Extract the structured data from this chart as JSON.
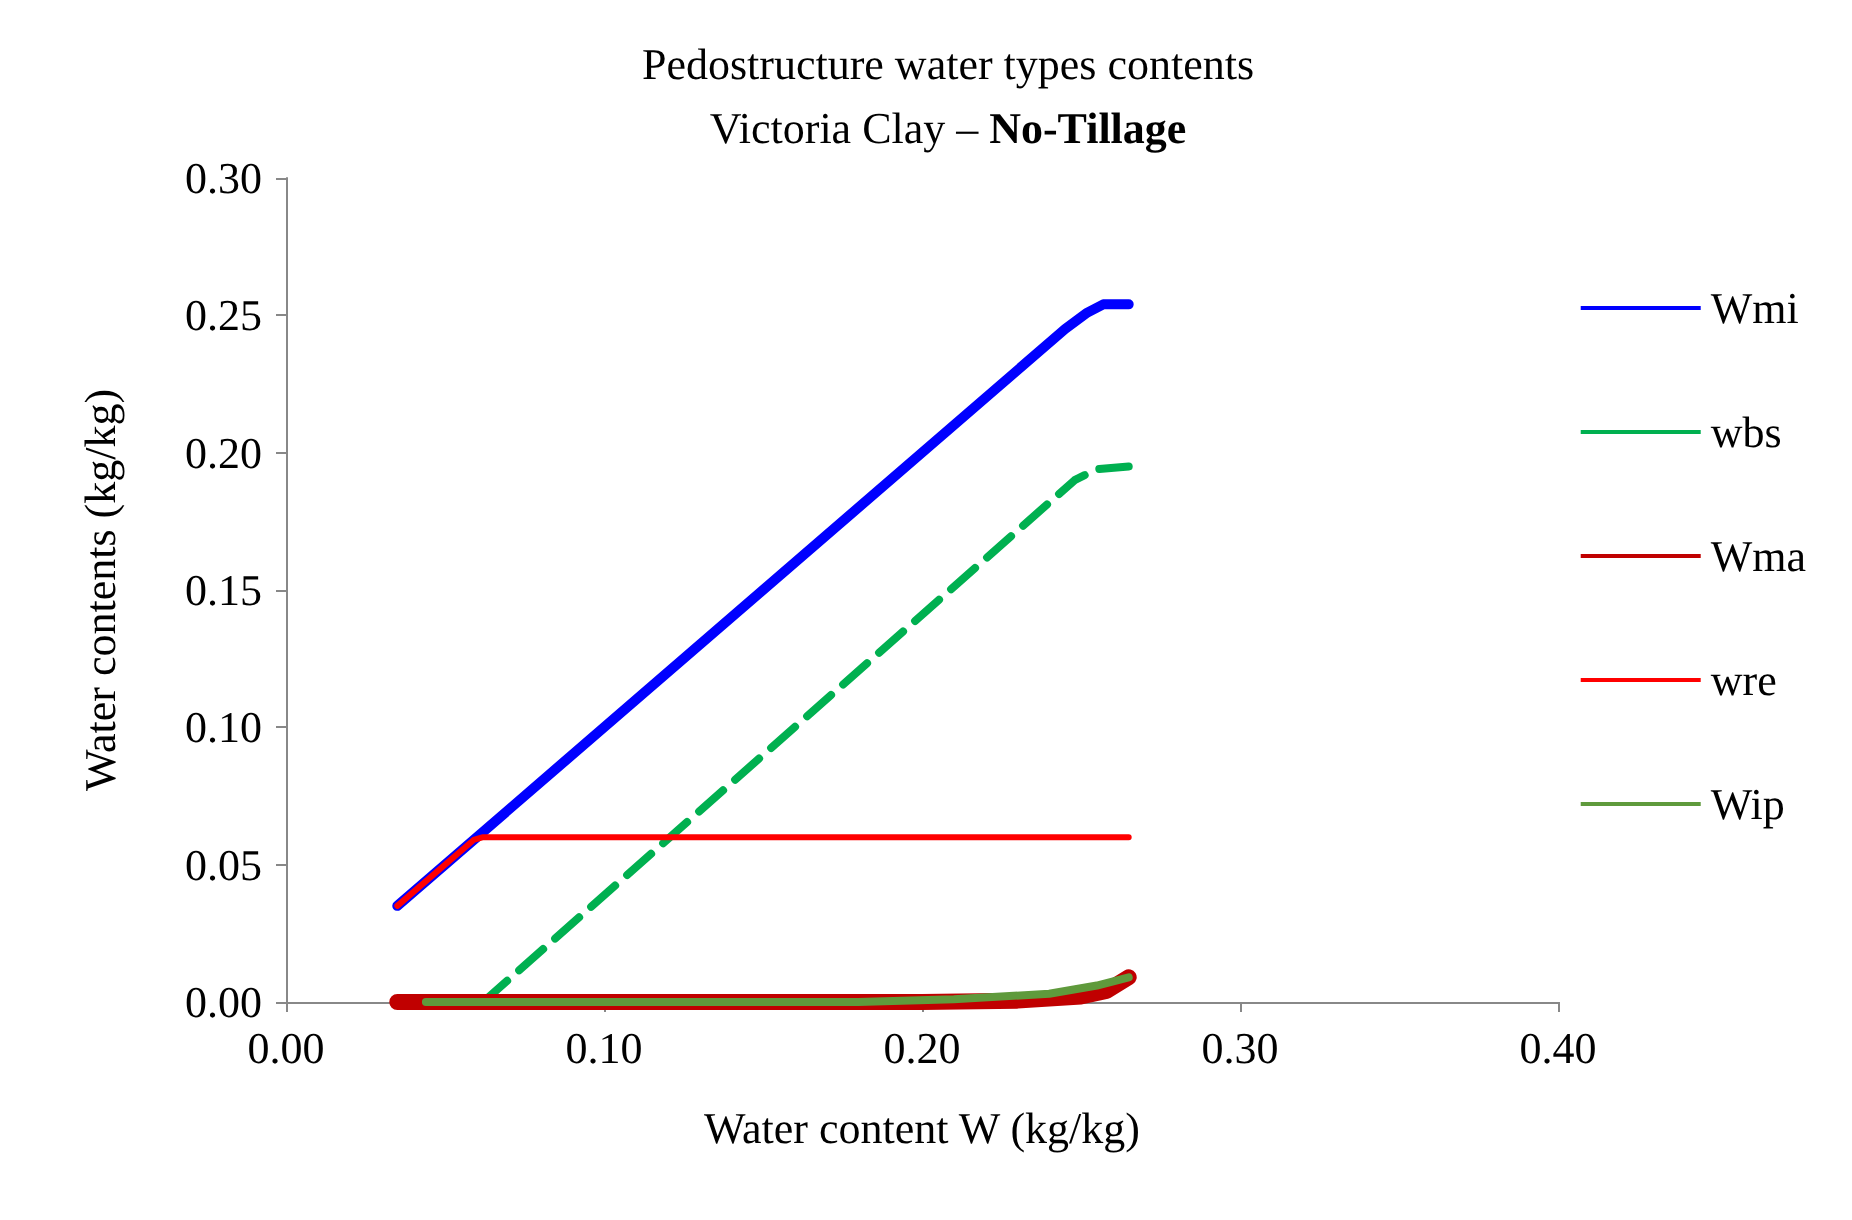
{
  "chart_data": {
    "type": "line",
    "title": "Pedostructure water types contents",
    "subtitle": "Victoria Clay – No-Tillage",
    "xlabel": "Water content W (kg/kg)",
    "ylabel": "Water contents (kg/kg)",
    "xlim": [
      0,
      0.4
    ],
    "xticks": [
      {
        "value": 0,
        "label": "0.00"
      },
      {
        "value": 0.1,
        "label": "0.10"
      },
      {
        "value": 0.2,
        "label": "0.20"
      },
      {
        "value": 0.3,
        "label": "0.30"
      },
      {
        "value": 0.4,
        "label": "0.40"
      }
    ],
    "ylim": [
      0,
      0.3
    ],
    "yticks": [
      {
        "value": 0,
        "label": "0.00"
      },
      {
        "value": 0.05,
        "label": "0.05"
      },
      {
        "value": 0.1,
        "label": "0.10"
      },
      {
        "value": 0.15,
        "label": "0.15"
      },
      {
        "value": 0.2,
        "label": "0.20"
      },
      {
        "value": 0.25,
        "label": "0.25"
      },
      {
        "value": 0.3,
        "label": "0.30"
      }
    ],
    "grid": false,
    "legend": "right",
    "marker": "none",
    "series": [
      {
        "name": "Wmi",
        "color": "#0000ff",
        "x": [
          0.035,
          0.245,
          0.252,
          0.257,
          0.265
        ],
        "values": [
          0.035,
          0.245,
          0.251,
          0.254,
          0.254
        ]
      },
      {
        "name": "wbs",
        "color": "#00b050",
        "line_style": "dashed",
        "x": [
          0.062,
          0.248,
          0.255,
          0.265
        ],
        "values": [
          0,
          0.19,
          0.194,
          0.195
        ]
      },
      {
        "name": "Wma",
        "color": "#c00000",
        "x": [
          0.035,
          0.2,
          0.23,
          0.25,
          0.258,
          0.265
        ],
        "values": [
          0,
          0,
          0.0005,
          0.002,
          0.004,
          0.009
        ]
      },
      {
        "name": "wre",
        "color": "#ff0000",
        "x": [
          0.035,
          0.059,
          0.062,
          0.265
        ],
        "values": [
          0.035,
          0.059,
          0.06,
          0.06
        ]
      },
      {
        "name": "Wip",
        "color": "#5f9a3c",
        "x": [
          0.044,
          0.18,
          0.21,
          0.24,
          0.255,
          0.265
        ],
        "values": [
          0,
          0,
          0.001,
          0.003,
          0.006,
          0.009
        ]
      }
    ]
  }
}
